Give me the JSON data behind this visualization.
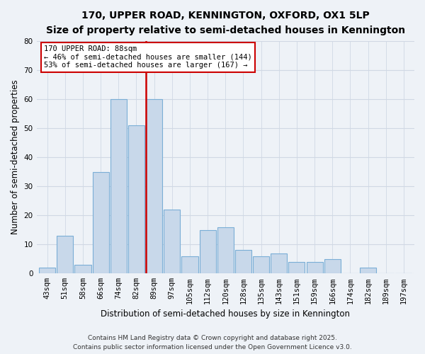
{
  "title": "170, UPPER ROAD, KENNINGTON, OXFORD, OX1 5LP",
  "subtitle": "Size of property relative to semi-detached houses in Kennington",
  "xlabel": "Distribution of semi-detached houses by size in Kennington",
  "ylabel": "Number of semi-detached properties",
  "bar_labels": [
    "43sqm",
    "51sqm",
    "58sqm",
    "66sqm",
    "74sqm",
    "82sqm",
    "89sqm",
    "97sqm",
    "105sqm",
    "112sqm",
    "120sqm",
    "128sqm",
    "135sqm",
    "143sqm",
    "151sqm",
    "159sqm",
    "166sqm",
    "174sqm",
    "182sqm",
    "189sqm",
    "197sqm"
  ],
  "bar_values": [
    2,
    13,
    3,
    35,
    60,
    51,
    60,
    22,
    6,
    15,
    16,
    8,
    6,
    7,
    4,
    4,
    5,
    0,
    2,
    0,
    0
  ],
  "bar_color": "#c8d8ea",
  "bar_edge_color": "#7aaed6",
  "background_color": "#eef2f7",
  "vline_index": 6,
  "vline_color": "#cc0000",
  "annotation_title": "170 UPPER ROAD: 88sqm",
  "annotation_line1": "← 46% of semi-detached houses are smaller (144)",
  "annotation_line2": "53% of semi-detached houses are larger (167) →",
  "annotation_box_color": "#ffffff",
  "annotation_box_edge": "#cc0000",
  "ylim": [
    0,
    80
  ],
  "yticks": [
    0,
    10,
    20,
    30,
    40,
    50,
    60,
    70,
    80
  ],
  "footer_line1": "Contains HM Land Registry data © Crown copyright and database right 2025.",
  "footer_line2": "Contains public sector information licensed under the Open Government Licence v3.0.",
  "title_fontsize": 10,
  "subtitle_fontsize": 9,
  "axis_label_fontsize": 8.5,
  "tick_fontsize": 7.5,
  "annotation_fontsize": 7.5,
  "footer_fontsize": 6.5,
  "grid_color": "#d0d8e4"
}
